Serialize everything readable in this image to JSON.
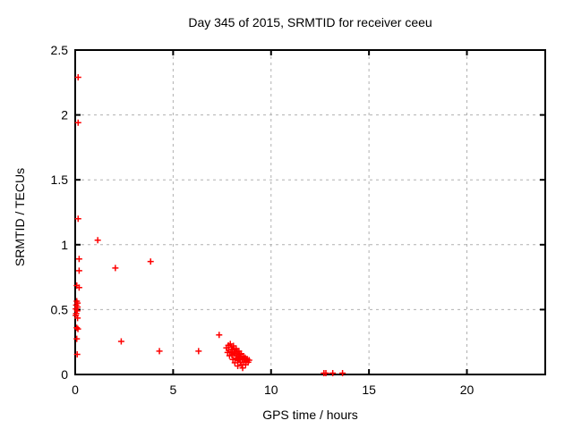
{
  "window": {
    "background": "#ffffff"
  },
  "chart_data": {
    "type": "scatter",
    "title": "Day 345 of 2015, SRMTID for receiver ceeu",
    "xlabel": "GPS time / hours",
    "ylabel": "SRMTID / TECUs",
    "xlim": [
      0,
      24
    ],
    "ylim": [
      0,
      2.5
    ],
    "xticks": [
      0,
      5,
      10,
      15,
      20
    ],
    "xtick_labels": [
      "0",
      "5",
      "10",
      "15",
      "20"
    ],
    "yticks": [
      0,
      0.5,
      1,
      1.5,
      2,
      2.5
    ],
    "ytick_labels": [
      "0",
      "0.5",
      "1",
      "1.5",
      "2",
      "2.5"
    ],
    "grid": true,
    "legend": "none",
    "marker": "plus",
    "marker_color": "#ff0000",
    "grid_color": "#b0b0b0",
    "border_color": "#000000",
    "series": [
      {
        "name": "SRMTID",
        "points": [
          [
            0.15,
            2.29
          ],
          [
            0.15,
            1.94
          ],
          [
            0.15,
            1.2
          ],
          [
            0.2,
            0.89
          ],
          [
            0.2,
            0.8
          ],
          [
            0.08,
            0.685
          ],
          [
            0.2,
            0.67
          ],
          [
            0.08,
            0.565
          ],
          [
            0.12,
            0.55
          ],
          [
            0.05,
            0.535
          ],
          [
            0.12,
            0.52
          ],
          [
            0.03,
            0.505
          ],
          [
            0.1,
            0.49
          ],
          [
            0.05,
            0.47
          ],
          [
            0.03,
            0.455
          ],
          [
            0.12,
            0.435
          ],
          [
            0.08,
            0.36
          ],
          [
            0.14,
            0.35
          ],
          [
            0.08,
            0.275
          ],
          [
            0.1,
            0.155
          ],
          [
            1.15,
            1.035
          ],
          [
            2.05,
            0.82
          ],
          [
            3.85,
            0.87
          ],
          [
            2.35,
            0.255
          ],
          [
            4.3,
            0.18
          ],
          [
            6.3,
            0.18
          ],
          [
            7.35,
            0.305
          ],
          [
            7.72,
            0.205
          ],
          [
            7.78,
            0.17
          ],
          [
            7.82,
            0.225
          ],
          [
            7.85,
            0.19
          ],
          [
            7.88,
            0.145
          ],
          [
            7.92,
            0.235
          ],
          [
            7.95,
            0.175
          ],
          [
            7.98,
            0.21
          ],
          [
            8.0,
            0.15
          ],
          [
            8.02,
            0.19
          ],
          [
            8.05,
            0.115
          ],
          [
            8.08,
            0.22
          ],
          [
            8.1,
            0.16
          ],
          [
            8.12,
            0.19
          ],
          [
            8.15,
            0.09
          ],
          [
            8.18,
            0.165
          ],
          [
            8.2,
            0.125
          ],
          [
            8.22,
            0.2
          ],
          [
            8.25,
            0.145
          ],
          [
            8.28,
            0.175
          ],
          [
            8.3,
            0.105
          ],
          [
            8.3,
            0.065
          ],
          [
            8.33,
            0.135
          ],
          [
            8.36,
            0.18
          ],
          [
            8.38,
            0.115
          ],
          [
            8.4,
            0.155
          ],
          [
            8.43,
            0.095
          ],
          [
            8.45,
            0.13
          ],
          [
            8.48,
            0.16
          ],
          [
            8.5,
            0.075
          ],
          [
            8.53,
            0.12
          ],
          [
            8.55,
            0.05
          ],
          [
            8.58,
            0.14
          ],
          [
            8.6,
            0.095
          ],
          [
            8.63,
            0.115
          ],
          [
            8.67,
            0.13
          ],
          [
            8.7,
            0.075
          ],
          [
            8.73,
            0.105
          ],
          [
            8.78,
            0.12
          ],
          [
            8.83,
            0.095
          ],
          [
            8.88,
            0.11
          ],
          [
            12.7,
            0.01
          ],
          [
            12.8,
            0.01
          ],
          [
            13.15,
            0.01
          ],
          [
            13.65,
            0.01
          ]
        ]
      }
    ]
  }
}
